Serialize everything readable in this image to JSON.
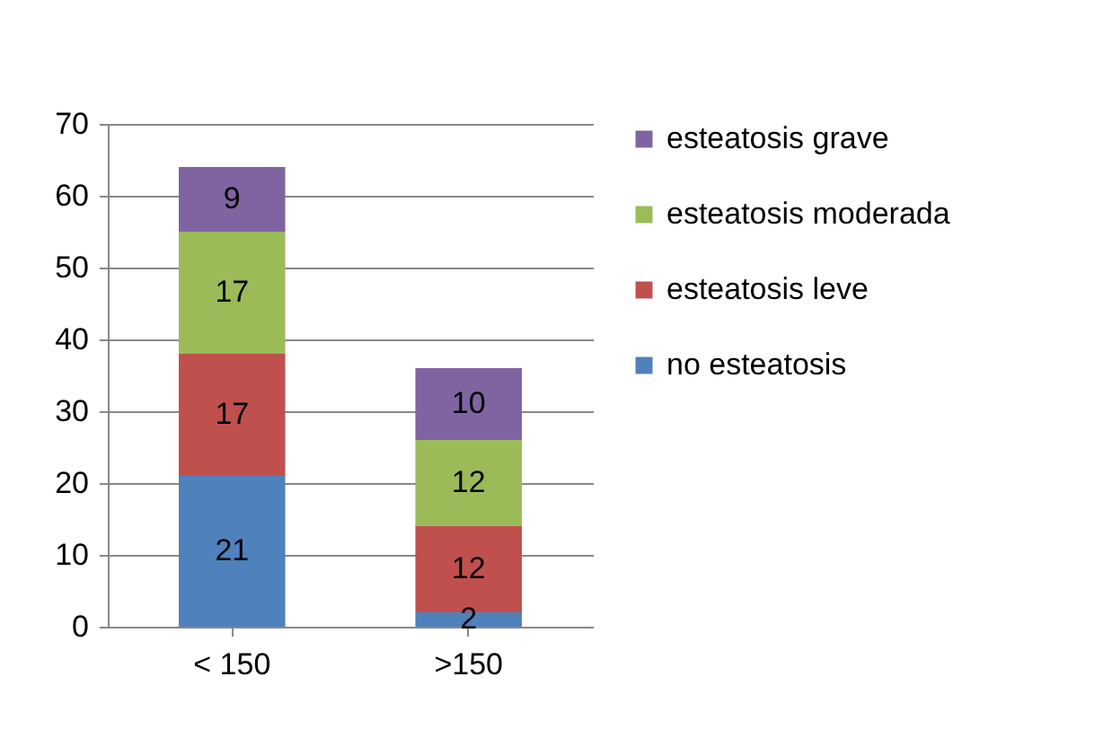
{
  "chart_data": {
    "type": "bar",
    "stacked": true,
    "categories": [
      "< 150",
      ">150"
    ],
    "series": [
      {
        "name": "no esteatosis",
        "color": "#4f81bd",
        "values": [
          21,
          2
        ]
      },
      {
        "name": "esteatosis leve",
        "color": "#c0504d",
        "values": [
          17,
          12
        ]
      },
      {
        "name": "esteatosis moderada",
        "color": "#9bbb59",
        "values": [
          17,
          12
        ]
      },
      {
        "name": "esteatosis grave",
        "color": "#8064a2",
        "values": [
          9,
          10
        ]
      }
    ],
    "ylim": [
      0,
      70
    ],
    "yticks": [
      0,
      10,
      20,
      30,
      40,
      50,
      60,
      70
    ],
    "grid": "y",
    "legend": "right",
    "data_labels": true
  }
}
